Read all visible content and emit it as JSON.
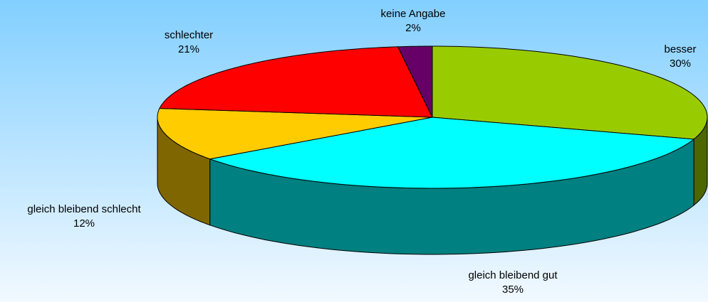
{
  "chart_data": {
    "type": "pie3d",
    "categories": [
      "besser",
      "gleich bleibend gut",
      "gleich bleibend schlecht",
      "schlechter",
      "keine Angabe"
    ],
    "values": [
      30,
      35,
      12,
      21,
      2
    ],
    "value_labels": [
      "30%",
      "35%",
      "12%",
      "21%",
      "2%"
    ],
    "colors": [
      "#99cc00",
      "#00ffff",
      "#ffcc00",
      "#ff0000",
      "#660066"
    ],
    "side_colors": [
      "#4d6600",
      "#008080",
      "#806600",
      "#800000",
      "#330033"
    ]
  }
}
